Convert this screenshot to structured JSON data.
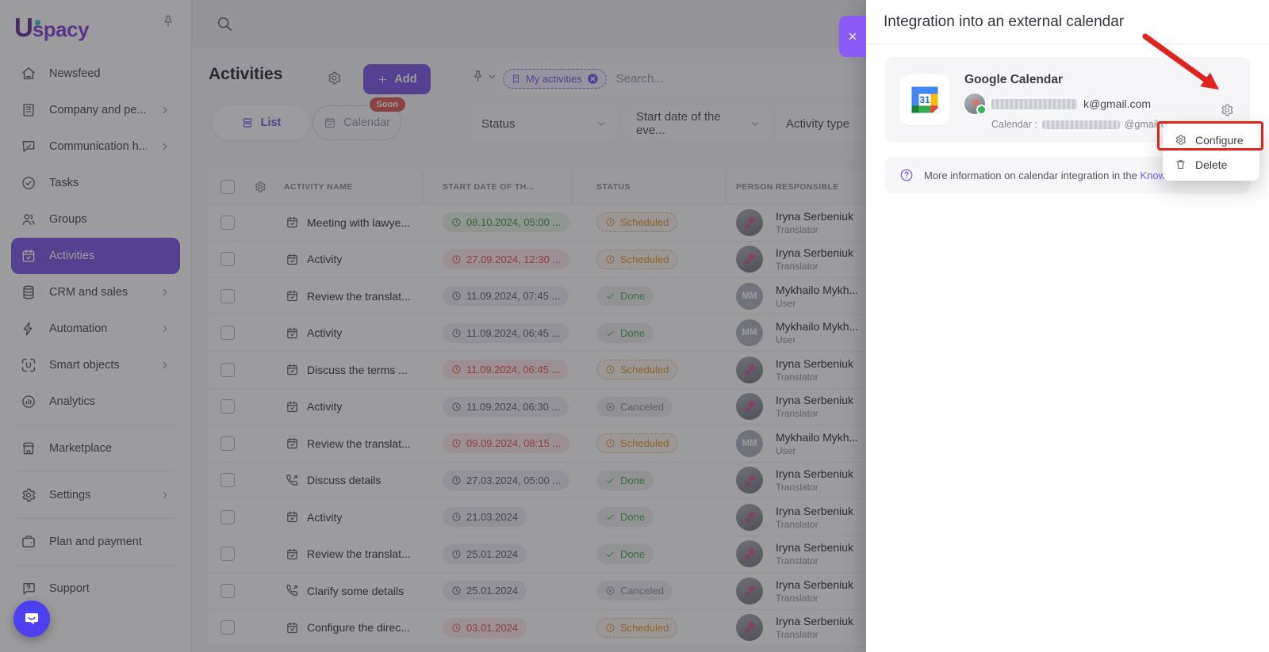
{
  "brand": {
    "logo_u": "U",
    "logo_rest": "spacy"
  },
  "sidebar": {
    "items": [
      {
        "label": "Newsfeed",
        "icon": "home",
        "chevron": false,
        "active": false,
        "divider_before": false
      },
      {
        "label": "Company and pe...",
        "icon": "building",
        "chevron": true,
        "active": false,
        "divider_before": false
      },
      {
        "label": "Communication h...",
        "icon": "comm",
        "chevron": true,
        "active": false,
        "divider_before": false
      },
      {
        "label": "Tasks",
        "icon": "tasks",
        "chevron": false,
        "active": false,
        "divider_before": false
      },
      {
        "label": "Groups",
        "icon": "groups",
        "chevron": false,
        "active": false,
        "divider_before": false
      },
      {
        "label": "Activities",
        "icon": "calendar",
        "chevron": false,
        "active": true,
        "divider_before": false
      },
      {
        "label": "CRM and sales",
        "icon": "crm",
        "chevron": true,
        "active": false,
        "divider_before": false
      },
      {
        "label": "Automation",
        "icon": "bolt",
        "chevron": true,
        "active": false,
        "divider_before": false
      },
      {
        "label": "Smart objects",
        "icon": "smart",
        "chevron": true,
        "active": false,
        "divider_before": false
      },
      {
        "label": "Analytics",
        "icon": "analytics",
        "chevron": false,
        "active": false,
        "divider_before": false
      },
      {
        "label": "Marketplace",
        "icon": "marketplace",
        "chevron": false,
        "active": false,
        "divider_before": true
      },
      {
        "label": "Settings",
        "icon": "gear",
        "chevron": true,
        "active": false,
        "divider_before": true
      },
      {
        "label": "Plan and payment",
        "icon": "wallet",
        "chevron": false,
        "active": false,
        "divider_before": true
      },
      {
        "label": "Support",
        "icon": "support",
        "chevron": false,
        "active": false,
        "divider_before": true
      }
    ]
  },
  "main": {
    "title": "Activities",
    "add_label": "Add",
    "filter_chip": "My activities",
    "search_placeholder": "Search...",
    "tabs": [
      {
        "label": "List"
      },
      {
        "label": "Calendar",
        "badge": "Soon"
      }
    ],
    "filters": [
      "Status",
      "Start date of the eve...",
      "Activity type"
    ],
    "table": {
      "headers": [
        "ACTIVITY NAME",
        "START DATE OF TH...",
        "STATUS",
        "PERSON RESPONSIBLE"
      ],
      "rows": [
        {
          "icon": "calendar",
          "name": "Meeting with lawye...",
          "date": "08.10.2024, 05:00 ...",
          "date_color": "green",
          "status": "Scheduled",
          "person": "Iryna Serbeniuk",
          "role": "Translator",
          "avatar": "photo"
        },
        {
          "icon": "calendar",
          "name": "Activity",
          "date": "27.09.2024, 12:30 ...",
          "date_color": "red",
          "status": "Scheduled",
          "person": "Iryna Serbeniuk",
          "role": "Translator",
          "avatar": "photo"
        },
        {
          "icon": "calendar",
          "name": "Review the translat...",
          "date": "11.09.2024, 07:45 ...",
          "date_color": "gray",
          "status": "Done",
          "person": "Mykhailo Mykh...",
          "role": "User",
          "avatar": "MM"
        },
        {
          "icon": "calendar",
          "name": "Activity",
          "date": "11.09.2024, 06:45 ...",
          "date_color": "gray",
          "status": "Done",
          "person": "Mykhailo Mykh...",
          "role": "User",
          "avatar": "MM"
        },
        {
          "icon": "calendar",
          "name": "Discuss the terms ...",
          "date": "11.09.2024, 06:45 ...",
          "date_color": "red",
          "status": "Scheduled",
          "person": "Iryna Serbeniuk",
          "role": "Translator",
          "avatar": "photo"
        },
        {
          "icon": "calendar",
          "name": "Activity",
          "date": "11.09.2024, 06:30 ...",
          "date_color": "gray",
          "status": "Canceled",
          "person": "Iryna Serbeniuk",
          "role": "Translator",
          "avatar": "photo"
        },
        {
          "icon": "calendar",
          "name": "Review the translat...",
          "date": "09.09.2024, 08:15 ...",
          "date_color": "red",
          "status": "Scheduled",
          "person": "Mykhailo Mykh...",
          "role": "User",
          "avatar": "MM"
        },
        {
          "icon": "phone",
          "name": "Discuss details",
          "date": "27.03.2024, 05:00 ...",
          "date_color": "gray",
          "status": "Done",
          "person": "Iryna Serbeniuk",
          "role": "Translator",
          "avatar": "photo"
        },
        {
          "icon": "calendar",
          "name": "Activity",
          "date": "21.03.2024",
          "date_color": "gray",
          "status": "Done",
          "person": "Iryna Serbeniuk",
          "role": "Translator",
          "avatar": "photo"
        },
        {
          "icon": "calendar",
          "name": "Review the translat...",
          "date": "25.01.2024",
          "date_color": "gray",
          "status": "Done",
          "person": "Iryna Serbeniuk",
          "role": "Translator",
          "avatar": "photo"
        },
        {
          "icon": "phone",
          "name": "Clarify some details",
          "date": "25.01.2024",
          "date_color": "gray",
          "status": "Canceled",
          "person": "Iryna Serbeniuk",
          "role": "Translator",
          "avatar": "photo"
        },
        {
          "icon": "calendar",
          "name": "Configure the direc...",
          "date": "03.01.2024",
          "date_color": "red",
          "status": "Scheduled",
          "person": "Iryna Serbeniuk",
          "role": "Translator",
          "avatar": "photo"
        }
      ]
    }
  },
  "panel": {
    "title": "Integration into an external calendar",
    "card": {
      "provider": "Google Calendar",
      "email_visible": "k@gmail.com",
      "calendar_label": "Calendar :",
      "calendar_suffix": "@gmail.com"
    },
    "menu": [
      {
        "label": "Configure",
        "icon": "gear"
      },
      {
        "label": "Delete",
        "icon": "trash"
      }
    ],
    "info": {
      "text": "More information on calendar integration in the ",
      "link": "Knowle"
    }
  },
  "colors": {
    "accent": "#7d5ce6",
    "close_button": "#8a5cf6",
    "annotation_red": "#e0231f",
    "scheduled": "#dd9b33",
    "done": "#4caf50",
    "canceled": "#90929a",
    "date_red": "#e4564f",
    "date_green": "#449a48",
    "soon_badge": "#e25c5c",
    "chat_fab": "#4b41f0"
  }
}
